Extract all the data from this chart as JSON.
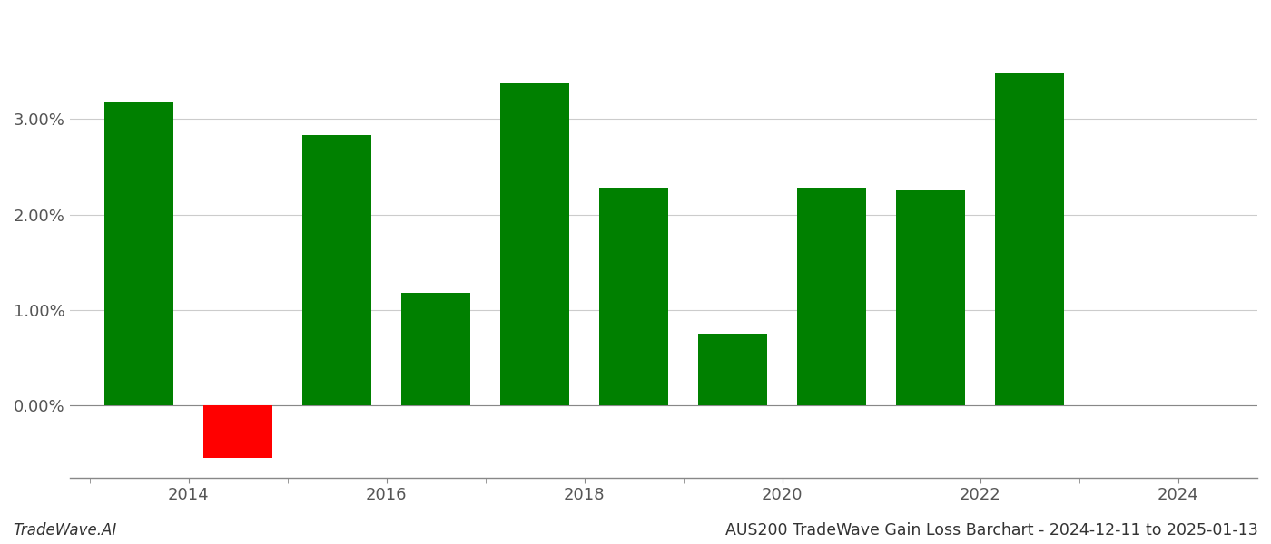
{
  "years": [
    2013.5,
    2014.5,
    2015.5,
    2016.5,
    2017.5,
    2018.5,
    2019.5,
    2020.5,
    2021.5,
    2022.5
  ],
  "values": [
    3.18,
    -0.55,
    2.83,
    1.18,
    3.38,
    2.28,
    0.75,
    2.28,
    2.25,
    3.48
  ],
  "colors": [
    "#008000",
    "#ff0000",
    "#008000",
    "#008000",
    "#008000",
    "#008000",
    "#008000",
    "#008000",
    "#008000",
    "#008000"
  ],
  "bar_width": 0.7,
  "title": "AUS200 TradeWave Gain Loss Barchart - 2024-12-11 to 2025-01-13",
  "watermark": "TradeWave.AI",
  "ylim_min": -0.75,
  "ylim_max": 4.1,
  "background_color": "#ffffff",
  "grid_color": "#cccccc",
  "tick_label_color": "#555555",
  "title_fontsize": 12.5,
  "watermark_fontsize": 12,
  "axis_fontsize": 13,
  "xlim_min": 2012.8,
  "xlim_max": 2024.8,
  "x_major_ticks": [
    2014,
    2016,
    2018,
    2020,
    2022,
    2024
  ],
  "x_minor_ticks": [
    2013,
    2014,
    2015,
    2016,
    2017,
    2018,
    2019,
    2020,
    2021,
    2022,
    2023,
    2024
  ],
  "y_ticks": [
    0.0,
    1.0,
    2.0,
    3.0
  ]
}
